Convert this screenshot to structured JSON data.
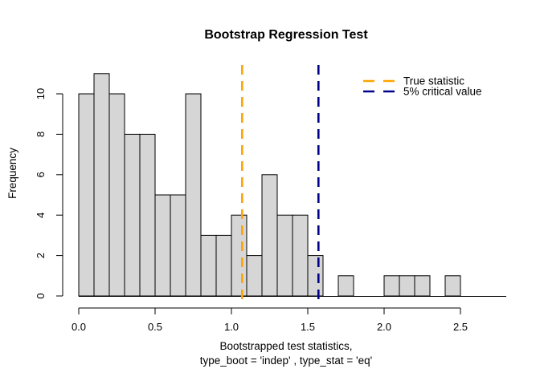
{
  "chart_data": {
    "type": "bar",
    "subtype": "histogram",
    "title": "Bootstrap Regression Test",
    "ylabel": "Frequency",
    "xlabel_lines": [
      "Bootstrapped test statistics,",
      "type_boot = 'indep' , type_stat = 'eq'"
    ],
    "bin_start": 0.0,
    "bin_width": 0.1,
    "counts": [
      10,
      11,
      10,
      8,
      8,
      5,
      5,
      10,
      3,
      3,
      4,
      2,
      6,
      4,
      4,
      2,
      0,
      1,
      0,
      0,
      1,
      1,
      1,
      0,
      1
    ],
    "x_ticks": {
      "values": [
        0,
        0.5,
        1,
        1.5,
        2,
        2.5
      ],
      "labels": [
        "0.0",
        "0.5",
        "1.0",
        "1.5",
        "2.0",
        "2.5"
      ]
    },
    "y_ticks": {
      "values": [
        0,
        2,
        4,
        6,
        8,
        10
      ],
      "labels": [
        "0",
        "2",
        "4",
        "6",
        "8",
        "10"
      ]
    },
    "xlim": [
      0,
      2.8
    ],
    "ylim": [
      0,
      11
    ],
    "grid": false,
    "bar_fill": "#D6D6D6",
    "bar_border": "#000000",
    "vlines": [
      {
        "name": "true-statistic",
        "x": 1.07,
        "color": "#FFA500",
        "style": "dashed"
      },
      {
        "name": "critical-value",
        "x": 1.57,
        "color": "#00008B",
        "style": "dashed"
      }
    ],
    "legend": {
      "position": "top-right",
      "box": false,
      "entries": [
        {
          "label": "True statistic",
          "color": "#FFA500",
          "line_style": "dashed"
        },
        {
          "label": "5% critical value",
          "color": "#00008B",
          "line_style": "dashed"
        }
      ]
    }
  }
}
